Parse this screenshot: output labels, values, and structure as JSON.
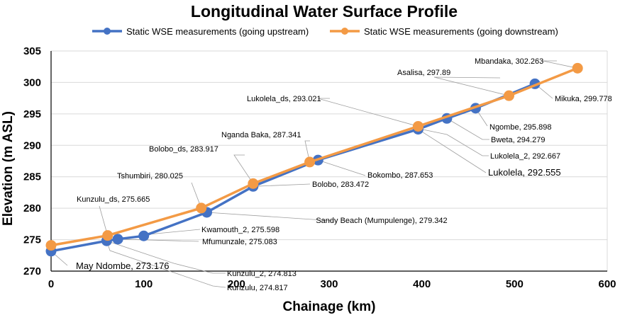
{
  "chart_data": {
    "type": "line",
    "title": "Longitudinal Water Surface Profile",
    "xlabel": "Chainage (km)",
    "ylabel": "Elevation (m ASL)",
    "xlim": [
      0,
      600
    ],
    "ylim": [
      270,
      305
    ],
    "xticks": [
      0,
      100,
      200,
      300,
      400,
      500,
      600
    ],
    "yticks": [
      270,
      275,
      280,
      285,
      290,
      295,
      300,
      305
    ],
    "grid": "horizontal",
    "legend_position": "top",
    "series": [
      {
        "name": "Static WSE measurements (going upstream)",
        "color": "#4472c4",
        "points": [
          {
            "x": 0,
            "y": 273.176,
            "label": "May Ndombe, 273.176"
          },
          {
            "x": 60,
            "y": 274.817,
            "label": "Kunzulu, 274.817"
          },
          {
            "x": 72,
            "y": 275.083,
            "label": "Mfumunzale, 275.083"
          },
          {
            "x": 100,
            "y": 275.598,
            "label": "Kwamouth_2, 275.598"
          },
          {
            "x": 168,
            "y": 279.342,
            "label": "Sandy Beach (Mumpulenge), 279.342"
          },
          {
            "x": 218,
            "y": 283.472,
            "label": "Bolobo, 283.472"
          },
          {
            "x": 288,
            "y": 287.653,
            "label": "Bokombo, 287.653"
          },
          {
            "x": 396,
            "y": 292.555,
            "label": "Lukolela, 292.555"
          },
          {
            "x": 427,
            "y": 294.279,
            "label": "Bweta, 294.279"
          },
          {
            "x": 458,
            "y": 295.898,
            "label": "Ngombe, 295.898"
          },
          {
            "x": 522,
            "y": 299.778,
            "label": "Mikuka, 299.778"
          }
        ]
      },
      {
        "name": "Static WSE measurements (going downstream)",
        "color": "#f39a45",
        "points": [
          {
            "x": 0,
            "y": 274.1,
            "label": ""
          },
          {
            "x": 61,
            "y": 275.665,
            "label": "Kunzulu_ds, 275.665"
          },
          {
            "x": 162,
            "y": 280.025,
            "label": "Tshumbiri, 280.025"
          },
          {
            "x": 218,
            "y": 283.917,
            "label": "Bolobo_ds, 283.917"
          },
          {
            "x": 279,
            "y": 287.341,
            "label": "Nganda Baka, 287.341"
          },
          {
            "x": 396,
            "y": 293.021,
            "label": "Lukolela_ds, 293.021"
          },
          {
            "x": 494,
            "y": 297.89,
            "label": "Asalisa, 297.89"
          },
          {
            "x": 568,
            "y": 302.263,
            "label": "Mbandaka, 302.263"
          }
        ]
      }
    ],
    "extra_annotations": [
      {
        "x": 396,
        "y": 292.667,
        "label": "Lukolela_2, 292.667"
      },
      {
        "x": 60,
        "y": 274.813,
        "label": "Kunzulu_2, 274.813"
      }
    ]
  }
}
